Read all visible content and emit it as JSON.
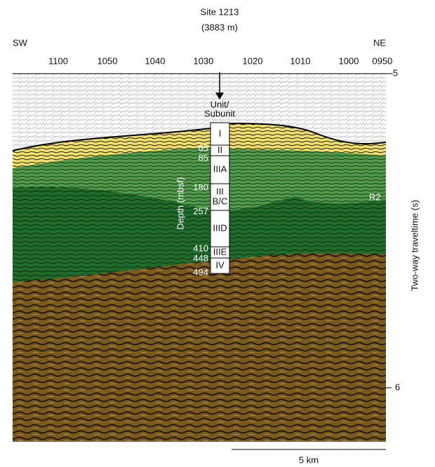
{
  "header": {
    "title": "Site 1213",
    "subtitle": "(3883 m)"
  },
  "directions": {
    "left": "SW",
    "right": "NE"
  },
  "shotpoints": [
    "1100",
    "1050",
    "1040",
    "1030",
    "1020",
    "1010",
    "1000",
    "0950"
  ],
  "time_axis": {
    "label": "Two-way traveltime (s)",
    "ticks": [
      "5",
      "6"
    ]
  },
  "column": {
    "heading": [
      "Unit/",
      "Subunit"
    ],
    "units": [
      [
        "I"
      ],
      [
        "II"
      ],
      [
        "IIIA"
      ],
      [
        "III",
        "B/C"
      ],
      [
        "IIID"
      ],
      [
        "IIIE"
      ],
      [
        "IV"
      ]
    ],
    "depth_label": "Depth (mbsf)",
    "depths": [
      "65",
      "85",
      "180",
      "257",
      "410",
      "448",
      "494"
    ]
  },
  "reflector": "R2",
  "scale_bar": "5 km"
}
